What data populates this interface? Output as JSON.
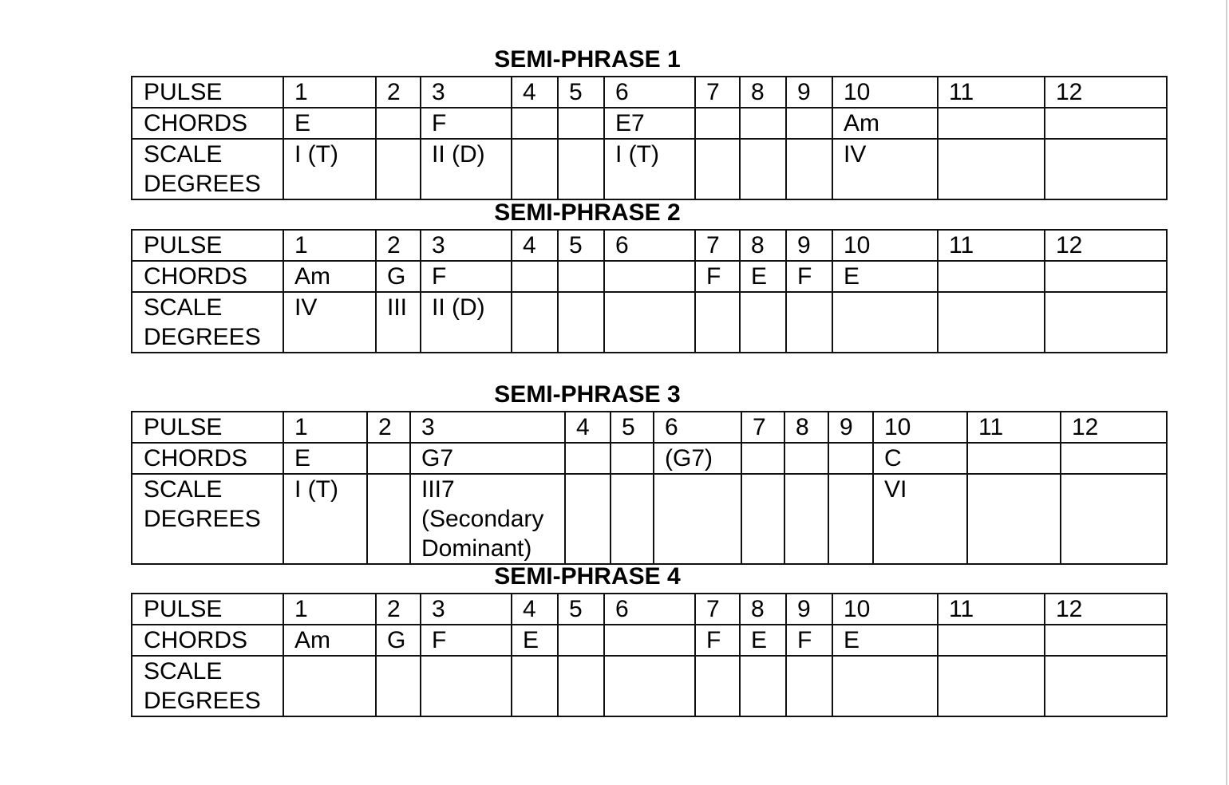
{
  "sections": [
    {
      "title": "SEMI-PHRASE 1",
      "rows": [
        [
          "PULSE",
          "1",
          "2",
          "3",
          "4",
          "5",
          "6",
          "7",
          "8",
          "9",
          "10",
          "11",
          "12"
        ],
        [
          "CHORDS",
          "E",
          "",
          "F",
          "",
          "",
          "E7",
          "",
          "",
          "",
          "Am",
          "",
          ""
        ],
        [
          "SCALE DEGREES",
          "I (T)",
          "",
          "II (D)",
          "",
          "",
          "I (T)",
          "",
          "",
          "",
          "IV",
          "",
          ""
        ]
      ]
    },
    {
      "title": "SEMI-PHRASE 2",
      "rows": [
        [
          "PULSE",
          "1",
          "2",
          "3",
          "4",
          "5",
          "6",
          "7",
          "8",
          "9",
          "10",
          "11",
          "12"
        ],
        [
          "CHORDS",
          "Am",
          "G",
          "F",
          "",
          "",
          "",
          "F",
          "E",
          "F",
          "E",
          "",
          ""
        ],
        [
          "SCALE DEGREES",
          "IV",
          "III",
          "II (D)",
          "",
          "",
          "",
          "",
          "",
          "",
          "",
          "",
          ""
        ]
      ]
    },
    {
      "title": "SEMI-PHRASE 3",
      "rows": [
        [
          "PULSE",
          "1",
          "2",
          "3",
          "4",
          "5",
          "6",
          "7",
          "8",
          "9",
          "10",
          "11",
          "12"
        ],
        [
          "CHORDS",
          "E",
          "",
          "G7",
          "",
          "",
          "(G7)",
          "",
          "",
          "",
          "C",
          "",
          ""
        ],
        [
          "SCALE DEGREES",
          "I (T)",
          "",
          "III7 (Secondary Dominant)",
          "",
          "",
          "",
          "",
          "",
          "",
          "VI",
          "",
          ""
        ]
      ]
    },
    {
      "title": "SEMI-PHRASE 4",
      "rows": [
        [
          "PULSE",
          "1",
          "2",
          "3",
          "4",
          "5",
          "6",
          "7",
          "8",
          "9",
          "10",
          "11",
          "12"
        ],
        [
          "CHORDS",
          "Am",
          "G",
          "F",
          "E",
          "",
          "",
          "F",
          "E",
          "F",
          "E",
          "",
          ""
        ],
        [
          "SCALE DEGREES",
          "",
          "",
          "",
          "",
          "",
          "",
          "",
          "",
          "",
          "",
          "",
          ""
        ]
      ]
    }
  ]
}
